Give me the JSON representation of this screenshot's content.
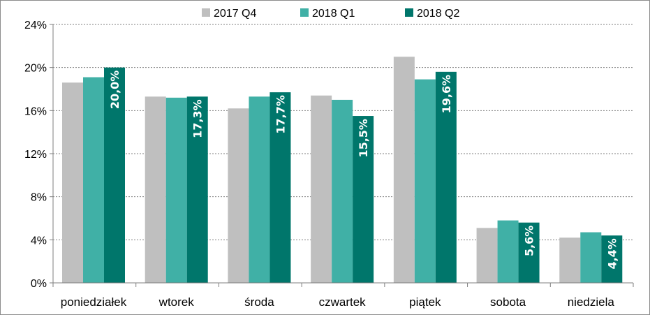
{
  "chart_data": {
    "type": "bar",
    "categories": [
      "poniedziałek",
      "wtorek",
      "środa",
      "czwartek",
      "piątek",
      "sobota",
      "niedziela"
    ],
    "series": [
      {
        "name": "2017 Q4",
        "color": "#bfbfbf",
        "values": [
          18.6,
          17.3,
          16.2,
          17.4,
          21.0,
          5.1,
          4.2
        ]
      },
      {
        "name": "2018 Q1",
        "color": "#40b0a6",
        "values": [
          19.1,
          17.2,
          17.3,
          17.0,
          18.9,
          5.8,
          4.7
        ]
      },
      {
        "name": "2018 Q2",
        "color": "#00766b",
        "values": [
          20.0,
          17.3,
          17.7,
          15.5,
          19.6,
          5.6,
          4.4
        ],
        "data_labels": [
          "20,0%",
          "17,3%",
          "17,7%",
          "15,5%",
          "19,6%",
          "5,6%",
          "4,4%"
        ]
      }
    ],
    "ylim": [
      0,
      24
    ],
    "yticks": [
      0,
      4,
      8,
      12,
      16,
      20,
      24
    ],
    "ytick_labels": [
      "0%",
      "4%",
      "8%",
      "12%",
      "16%",
      "20%",
      "24%"
    ],
    "grid": true,
    "legend_position": "top-center",
    "title": "",
    "xlabel": "",
    "ylabel": ""
  }
}
